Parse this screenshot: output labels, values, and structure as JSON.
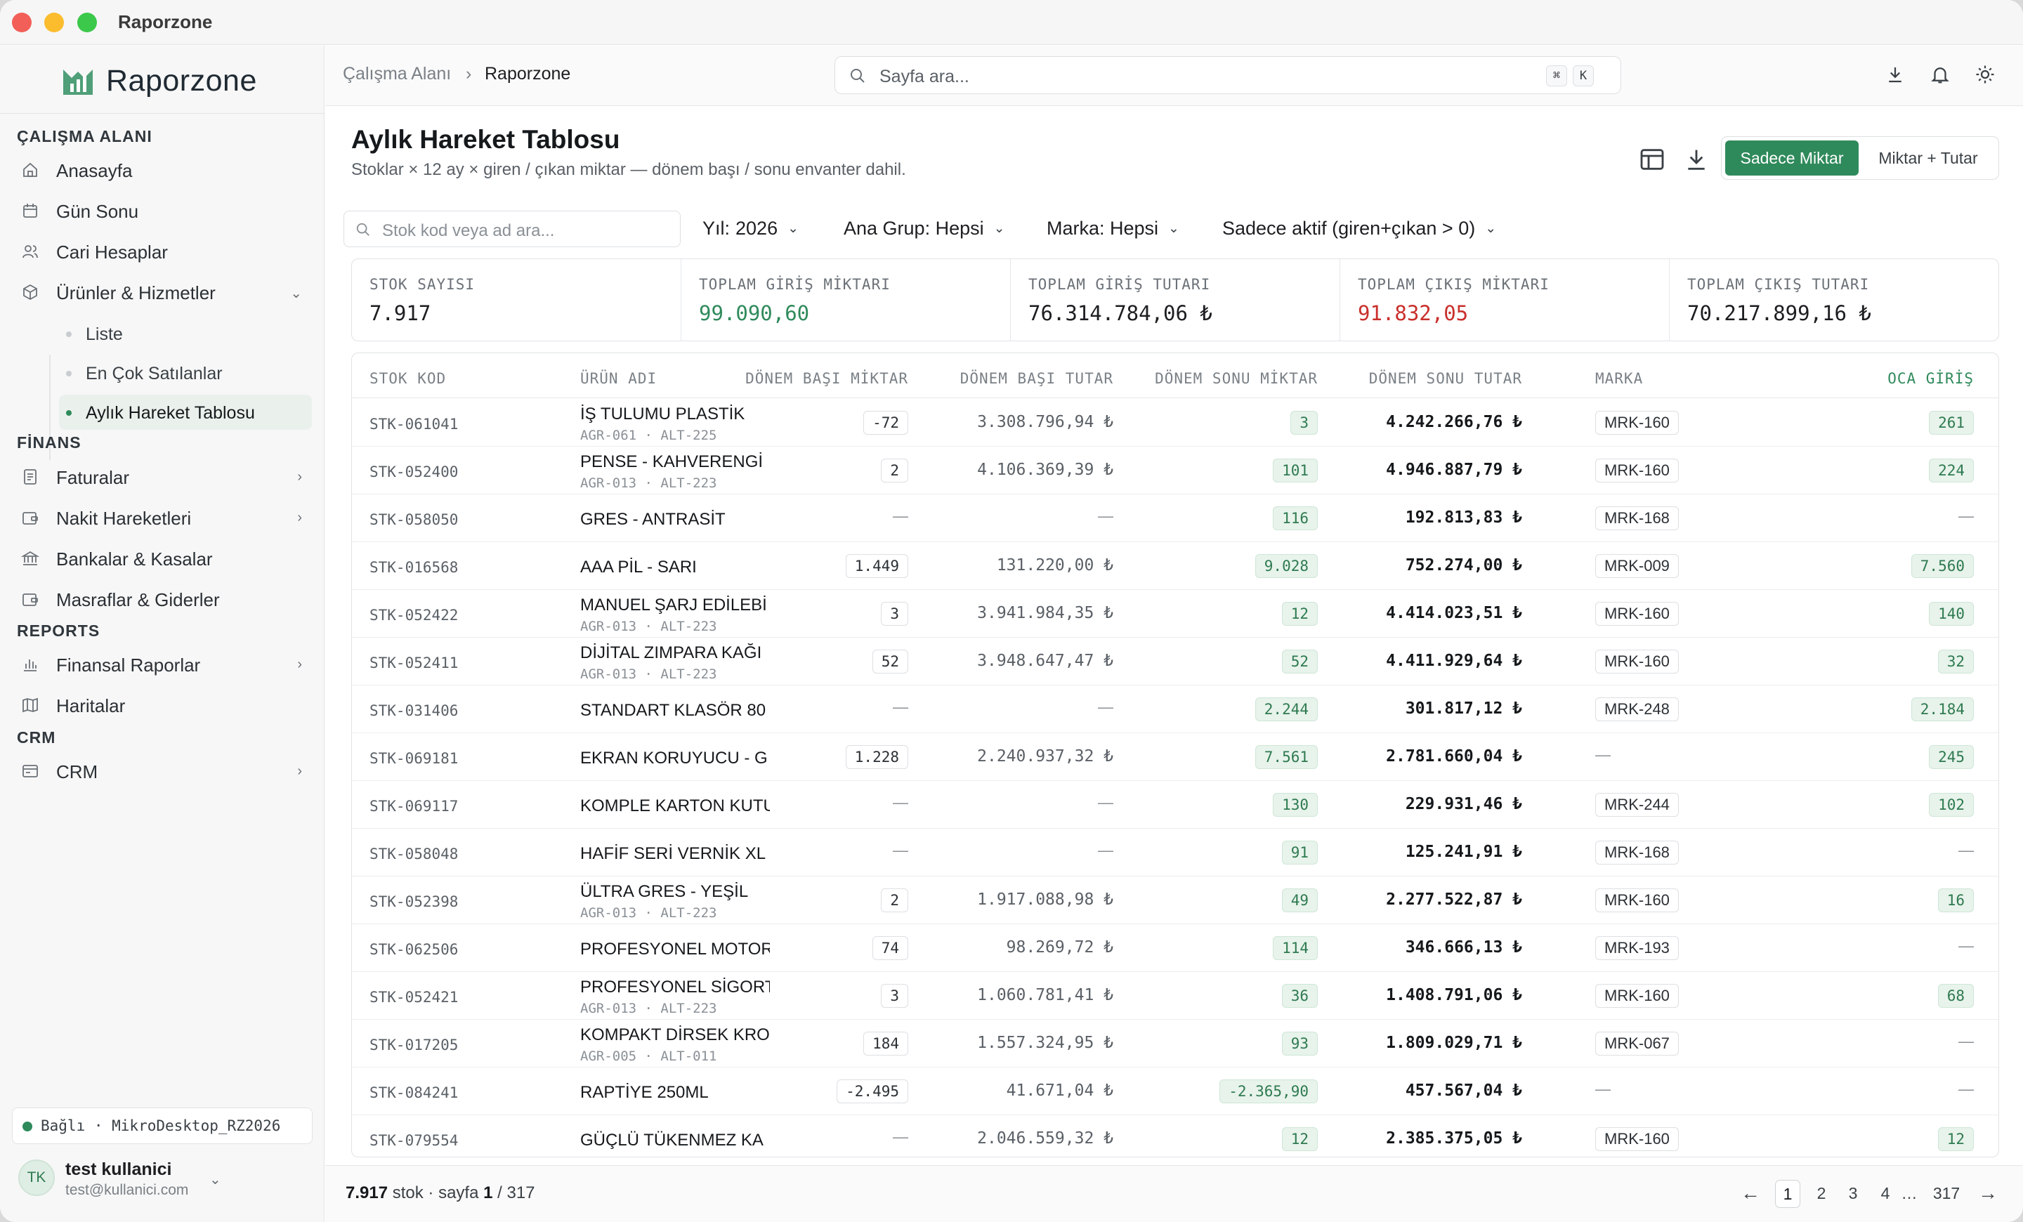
{
  "window": {
    "title": "Raporzone"
  },
  "sidebar": {
    "brand": "Raporzone",
    "sections": {
      "workspace": "ÇALIŞMA ALANI",
      "finance": "FİNANS",
      "reports": "REPORTS",
      "crm": "CRM"
    },
    "items": {
      "home": "Anasayfa",
      "dayend": "Gün Sonu",
      "accounts": "Cari Hesaplar",
      "products": "Ürünler & Hizmetler",
      "invoices": "Faturalar",
      "cash": "Nakit Hareketleri",
      "banks": "Bankalar & Kasalar",
      "expenses": "Masraflar & Giderler",
      "finrep": "Finansal Raporlar",
      "maps": "Haritalar",
      "crm": "CRM"
    },
    "sub": {
      "list": "Liste",
      "bestsellers": "En Çok Satılanlar",
      "monthly": "Aylık Hareket Tablosu"
    },
    "connection": "Bağlı · MikroDesktop_RZ2026",
    "user": {
      "initials": "TK",
      "name": "test kullanici",
      "email": "test@kullanici.com"
    }
  },
  "topbar": {
    "crumb1": "Çalışma Alanı",
    "sep": "›",
    "crumb2": "Raporzone",
    "search_placeholder": "Sayfa ara...",
    "kbd1": "⌘",
    "kbd2": "K"
  },
  "page": {
    "title": "Aylık Hareket Tablosu",
    "subtitle": "Stoklar × 12 ay × giren / çıkan miktar — dönem başı / sonu envanter dahil.",
    "seg_on": "Sadece Miktar",
    "seg_off": "Miktar + Tutar",
    "filter_search": "Stok kod veya ad ara...",
    "filters": {
      "year_label": "Yıl:",
      "year_value": "2026",
      "group": "Ana Grup: Hepsi",
      "brand": "Marka: Hepsi",
      "active": "Sadece aktif (giren+çıkan > 0)"
    },
    "stats": [
      {
        "label": "STOK SAYISI",
        "value": "7.917",
        "color": "#1c1e21"
      },
      {
        "label": "TOPLAM GİRİŞ MİKTARI",
        "value": "99.090,60",
        "color": "#2f8a5b"
      },
      {
        "label": "TOPLAM GİRİŞ TUTARI",
        "value": "76.314.784,06 ₺",
        "color": "#1c1e21"
      },
      {
        "label": "TOPLAM ÇIKIŞ MİKTARI",
        "value": "91.832,05",
        "color": "#c9302c"
      },
      {
        "label": "TOPLAM ÇIKIŞ TUTARI",
        "value": "70.217.899,16 ₺",
        "color": "#1c1e21"
      }
    ]
  },
  "table": {
    "headers": {
      "code": "STOK KOD",
      "name": "ÜRÜN ADI",
      "bq": "DÖNEM BAŞI MİKTAR",
      "bt": "DÖNEM BAŞI TUTAR",
      "sq": "DÖNEM SONU MİKTAR",
      "st": "DÖNEM SONU TUTAR",
      "brand": "MARKA",
      "jan": "OCA GİRİŞ"
    },
    "rows": [
      {
        "code": "STK-061041",
        "name": "İŞ TULUMU PLASTİK",
        "meta": "AGR-061 · ALT-225",
        "bq": "-72",
        "bt": "3.308.796,94 ₺",
        "sq": "3",
        "st": "4.242.266,76 ₺",
        "brand": "MRK-160",
        "jan": "261"
      },
      {
        "code": "STK-052400",
        "name": "PENSE - KAHVERENGİ",
        "meta": "AGR-013 · ALT-223",
        "bq": "2",
        "bt": "4.106.369,39 ₺",
        "sq": "101",
        "st": "4.946.887,79 ₺",
        "brand": "MRK-160",
        "jan": "224"
      },
      {
        "code": "STK-058050",
        "name": "GRES - ANTRASİT",
        "meta": "",
        "bq": "—",
        "bt": "—",
        "sq": "116",
        "st": "192.813,83 ₺",
        "brand": "MRK-168",
        "jan": "—"
      },
      {
        "code": "STK-016568",
        "name": "AAA PİL - SARI",
        "meta": "",
        "bq": "1.449",
        "bt": "131.220,00 ₺",
        "sq": "9.028",
        "st": "752.274,00 ₺",
        "brand": "MRK-009",
        "jan": "7.560"
      },
      {
        "code": "STK-052422",
        "name": "MANUEL ŞARJ EDİLEBİ",
        "meta": "AGR-013 · ALT-223",
        "bq": "3",
        "bt": "3.941.984,35 ₺",
        "sq": "12",
        "st": "4.414.023,51 ₺",
        "brand": "MRK-160",
        "jan": "140"
      },
      {
        "code": "STK-052411",
        "name": "DİJİTAL ZIMPARA KAĞI",
        "meta": "AGR-013 · ALT-223",
        "bq": "52",
        "bt": "3.948.647,47 ₺",
        "sq": "52",
        "st": "4.411.929,64 ₺",
        "brand": "MRK-160",
        "jan": "32"
      },
      {
        "code": "STK-031406",
        "name": "STANDART KLASÖR 80",
        "meta": "",
        "bq": "—",
        "bt": "—",
        "sq": "2.244",
        "st": "301.817,12 ₺",
        "brand": "MRK-248",
        "jan": "2.184"
      },
      {
        "code": "STK-069181",
        "name": "EKRAN KORUYUCU - G",
        "meta": "",
        "bq": "1.228",
        "bt": "2.240.937,32 ₺",
        "sq": "7.561",
        "st": "2.781.660,04 ₺",
        "brand": "—",
        "jan": "245"
      },
      {
        "code": "STK-069117",
        "name": "KOMPLE KARTON KUTU",
        "meta": "",
        "bq": "—",
        "bt": "—",
        "sq": "130",
        "st": "229.931,46 ₺",
        "brand": "MRK-244",
        "jan": "102"
      },
      {
        "code": "STK-058048",
        "name": "HAFİF SERİ VERNİK XL",
        "meta": "",
        "bq": "—",
        "bt": "—",
        "sq": "91",
        "st": "125.241,91 ₺",
        "brand": "MRK-168",
        "jan": "—"
      },
      {
        "code": "STK-052398",
        "name": "ÜLTRA GRES - YEŞİL",
        "meta": "AGR-013 · ALT-223",
        "bq": "2",
        "bt": "1.917.088,98 ₺",
        "sq": "49",
        "st": "2.277.522,87 ₺",
        "brand": "MRK-160",
        "jan": "16"
      },
      {
        "code": "STK-062506",
        "name": "PROFESYONEL MOTOR",
        "meta": "",
        "bq": "74",
        "bt": "98.269,72 ₺",
        "sq": "114",
        "st": "346.666,13 ₺",
        "brand": "MRK-193",
        "jan": "—"
      },
      {
        "code": "STK-052421",
        "name": "PROFESYONEL SİGORT",
        "meta": "AGR-013 · ALT-223",
        "bq": "3",
        "bt": "1.060.781,41 ₺",
        "sq": "36",
        "st": "1.408.791,06 ₺",
        "brand": "MRK-160",
        "jan": "68"
      },
      {
        "code": "STK-017205",
        "name": "KOMPAKT DİRSEK KRO",
        "meta": "AGR-005 · ALT-011",
        "bq": "184",
        "bt": "1.557.324,95 ₺",
        "sq": "93",
        "st": "1.809.029,71 ₺",
        "brand": "MRK-067",
        "jan": "—"
      },
      {
        "code": "STK-084241",
        "name": "RAPTİYE 250ML",
        "meta": "",
        "bq": "-2.495",
        "bt": "41.671,04 ₺",
        "sq": "-2.365,90",
        "st": "457.567,04 ₺",
        "brand": "—",
        "jan": "—"
      },
      {
        "code": "STK-079554",
        "name": "GÜÇLÜ TÜKENMEZ KA",
        "meta": "",
        "bq": "—",
        "bt": "2.046.559,32 ₺",
        "sq": "12",
        "st": "2.385.375,05 ₺",
        "brand": "MRK-160",
        "jan": "12"
      }
    ]
  },
  "footer": {
    "count": "7.917",
    "count_suffix": " stok · sayfa ",
    "page": "1",
    "total": " / 317",
    "pages": [
      "1",
      "2",
      "3",
      "4",
      "…",
      "317"
    ],
    "prev": "←",
    "next": "→"
  }
}
